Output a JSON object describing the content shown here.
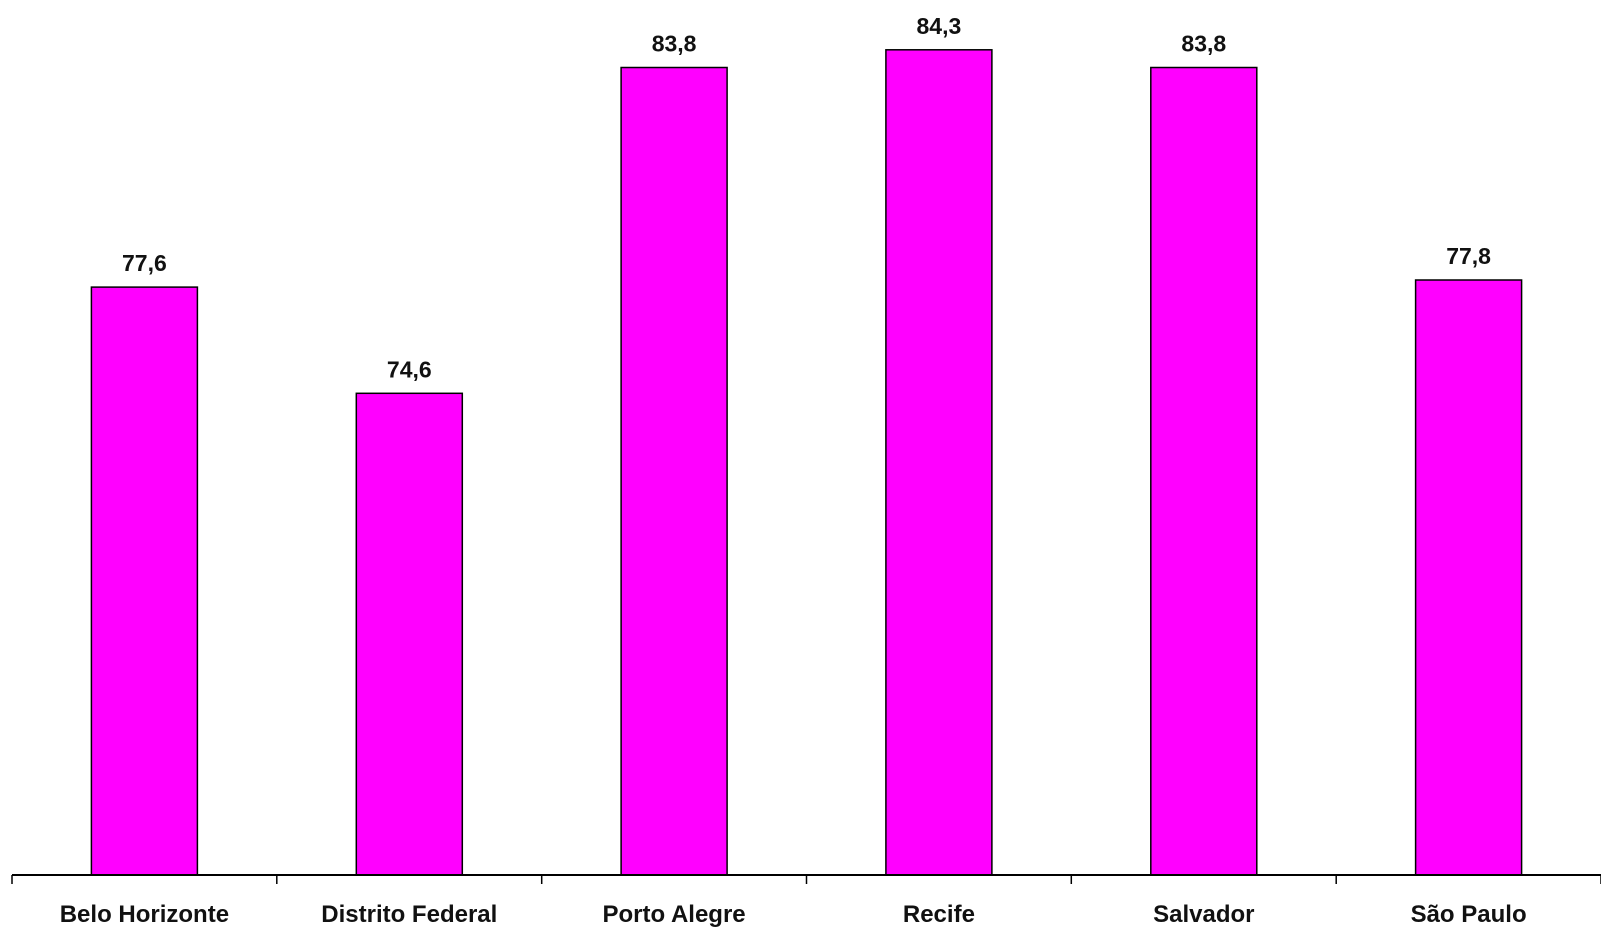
{
  "chart_data": {
    "type": "bar",
    "title": "",
    "xlabel": "",
    "ylabel": "",
    "categories": [
      "Belo Horizonte",
      "Distrito Federal",
      "Porto Alegre",
      "Recife",
      "Salvador",
      "São Paulo"
    ],
    "values": [
      77.6,
      74.6,
      83.8,
      84.3,
      83.8,
      77.8
    ],
    "value_labels": [
      "77,6",
      "74,6",
      "83,8",
      "84,3",
      "83,8",
      "77,8"
    ],
    "ylim": [
      61,
      85
    ],
    "grid": false,
    "legend": "none",
    "colors": {
      "bar": "#ff00ff",
      "bar_outline": "#000000",
      "axis": "#000000",
      "text": "#111111"
    }
  }
}
